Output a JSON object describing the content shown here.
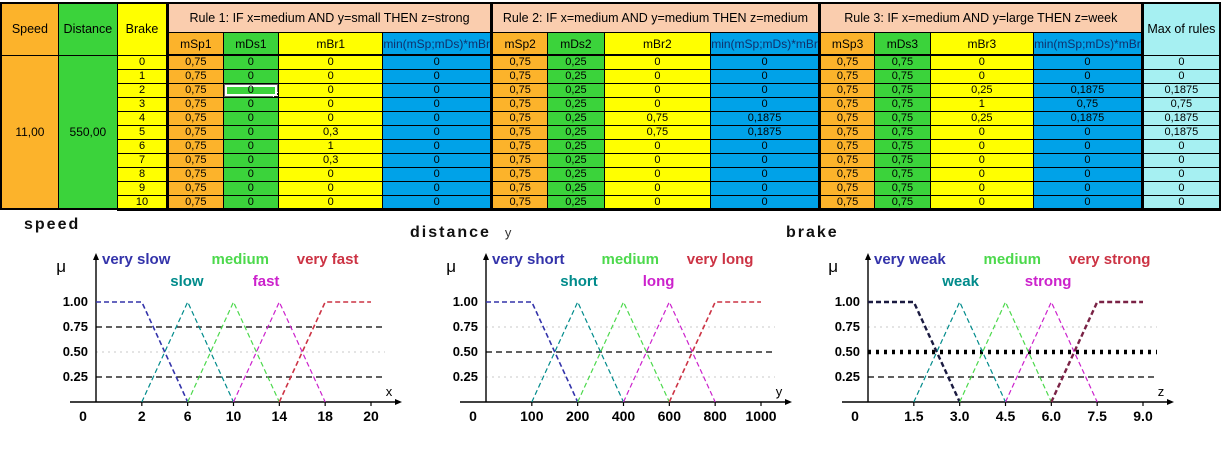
{
  "table": {
    "headers": {
      "speed": "Speed",
      "distance": "Distance",
      "brake": "Brake",
      "max": "Max of rules"
    },
    "rules": [
      {
        "title": "Rule 1: IF x=medium AND y=small THEN z=strong",
        "sub": [
          "mSp1",
          "mDs1",
          "mBr1",
          "min(mSp;mDs)*mBr"
        ]
      },
      {
        "title": "Rule 2: IF x=medium AND y=medium THEN z=medium",
        "sub": [
          "mSp2",
          "mDs2",
          "mBr2",
          "min(mSp;mDs)*mBr"
        ]
      },
      {
        "title": "Rule 3: IF x=medium AND y=large THEN z=week",
        "sub": [
          "mSp3",
          "mDs3",
          "mBr3",
          "min(mSp;mDs)*mBr"
        ]
      }
    ],
    "speed_value": "11,00",
    "distance_value": "550,00",
    "rows": [
      {
        "brake": "0",
        "r1": [
          "0,75",
          "0",
          "0",
          "0"
        ],
        "r2": [
          "0,75",
          "0,25",
          "0",
          "0"
        ],
        "r3": [
          "0,75",
          "0,75",
          "0",
          "0"
        ],
        "max": "0"
      },
      {
        "brake": "1",
        "r1": [
          "0,75",
          "0",
          "0",
          "0"
        ],
        "r2": [
          "0,75",
          "0,25",
          "0",
          "0"
        ],
        "r3": [
          "0,75",
          "0,75",
          "0",
          "0"
        ],
        "max": "0"
      },
      {
        "brake": "2",
        "r1": [
          "0,75",
          "0",
          "0",
          "0"
        ],
        "r2": [
          "0,75",
          "0,25",
          "0",
          "0"
        ],
        "r3": [
          "0,75",
          "0,75",
          "0,25",
          "0,1875"
        ],
        "max": "0,1875"
      },
      {
        "brake": "3",
        "r1": [
          "0,75",
          "0",
          "0",
          "0"
        ],
        "r2": [
          "0,75",
          "0,25",
          "0",
          "0"
        ],
        "r3": [
          "0,75",
          "0,75",
          "1",
          "0,75"
        ],
        "max": "0,75"
      },
      {
        "brake": "4",
        "r1": [
          "0,75",
          "0",
          "0",
          "0"
        ],
        "r2": [
          "0,75",
          "0,25",
          "0,75",
          "0,1875"
        ],
        "r3": [
          "0,75",
          "0,75",
          "0,25",
          "0,1875"
        ],
        "max": "0,1875"
      },
      {
        "brake": "5",
        "r1": [
          "0,75",
          "0",
          "0,3",
          "0"
        ],
        "r2": [
          "0,75",
          "0,25",
          "0,75",
          "0,1875"
        ],
        "r3": [
          "0,75",
          "0,75",
          "0",
          "0"
        ],
        "max": "0,1875"
      },
      {
        "brake": "6",
        "r1": [
          "0,75",
          "0",
          "1",
          "0"
        ],
        "r2": [
          "0,75",
          "0,25",
          "0",
          "0"
        ],
        "r3": [
          "0,75",
          "0,75",
          "0",
          "0"
        ],
        "max": "0"
      },
      {
        "brake": "7",
        "r1": [
          "0,75",
          "0",
          "0,3",
          "0"
        ],
        "r2": [
          "0,75",
          "0,25",
          "0",
          "0"
        ],
        "r3": [
          "0,75",
          "0,75",
          "0",
          "0"
        ],
        "max": "0"
      },
      {
        "brake": "8",
        "r1": [
          "0,75",
          "0",
          "0",
          "0"
        ],
        "r2": [
          "0,75",
          "0,25",
          "0",
          "0"
        ],
        "r3": [
          "0,75",
          "0,75",
          "0",
          "0"
        ],
        "max": "0"
      },
      {
        "brake": "9",
        "r1": [
          "0,75",
          "0",
          "0",
          "0"
        ],
        "r2": [
          "0,75",
          "0,25",
          "0",
          "0"
        ],
        "r3": [
          "0,75",
          "0,75",
          "0",
          "0"
        ],
        "max": "0"
      },
      {
        "brake": "10",
        "r1": [
          "0,75",
          "0",
          "0",
          "0"
        ],
        "r2": [
          "0,75",
          "0,25",
          "0",
          "0"
        ],
        "r3": [
          "0,75",
          "0,75",
          "0",
          "0"
        ],
        "max": "0"
      }
    ],
    "selected_cell": {
      "row_index": 2,
      "rule_index": 0,
      "col_index": 1
    }
  },
  "colors": {
    "orange": "#FCB32B",
    "green": "#3BD33B",
    "yellow": "#FFFF00",
    "peach": "#FACDAE",
    "blue": "#00A2E8",
    "pale_cyan": "#A6F0F2"
  },
  "chart_data": [
    {
      "type": "line",
      "title": "speed",
      "title_suffix": "",
      "mu_label": "μ",
      "axis_letter": "x",
      "ylim": [
        0,
        1
      ],
      "ticks": [
        0,
        2,
        6,
        10,
        14,
        18,
        20
      ],
      "xtick_labels": [
        "0",
        "2",
        "6",
        "10",
        "14",
        "18",
        "20"
      ],
      "ytick_labels": [
        "1.00",
        "0.75",
        "0.50",
        "0.25"
      ],
      "guides": [
        {
          "y": 0.75,
          "style": "dash"
        },
        {
          "y": 0.5,
          "style": "dot-gray"
        },
        {
          "y": 0.25,
          "style": "dash"
        }
      ],
      "series": [
        {
          "name": "very slow",
          "color": "#3333AA",
          "label_color": "#3333AA",
          "width": 1.6,
          "points": [
            [
              0,
              1
            ],
            [
              2,
              1
            ],
            [
              6,
              0
            ]
          ]
        },
        {
          "name": "slow",
          "color": "#008B8B",
          "label_color": "#008B8B",
          "width": 1.2,
          "points": [
            [
              2,
              0
            ],
            [
              6,
              1
            ],
            [
              10,
              0
            ]
          ]
        },
        {
          "name": "medium",
          "color": "#4CD94C",
          "label_color": "#4CD94C",
          "width": 1.2,
          "points": [
            [
              6,
              0
            ],
            [
              10,
              1
            ],
            [
              14,
              0
            ]
          ]
        },
        {
          "name": "fast",
          "color": "#CC22CC",
          "label_color": "#CC22CC",
          "width": 1.2,
          "points": [
            [
              10,
              0
            ],
            [
              14,
              1
            ],
            [
              18,
              0
            ]
          ]
        },
        {
          "name": "very fast",
          "color": "#CC3344",
          "label_color": "#CC3344",
          "width": 1.6,
          "points": [
            [
              14,
              0
            ],
            [
              18,
              1
            ],
            [
              20,
              1
            ]
          ]
        }
      ]
    },
    {
      "type": "line",
      "title": "distance",
      "title_suffix": "y",
      "mu_label": "μ",
      "axis_letter": "y",
      "ylim": [
        0,
        1
      ],
      "ticks": [
        0,
        100,
        200,
        400,
        600,
        800,
        1000
      ],
      "xtick_labels": [
        "0",
        "100",
        "200",
        "400",
        "600",
        "800",
        "1000"
      ],
      "ytick_labels": [
        "1.00",
        "0.75",
        "0.50",
        "0.25"
      ],
      "guides": [
        {
          "y": 0.75,
          "style": "dot-gray"
        },
        {
          "y": 0.5,
          "style": "dash"
        },
        {
          "y": 0.25,
          "style": "dot-gray"
        }
      ],
      "series": [
        {
          "name": "very short",
          "color": "#3333AA",
          "label_color": "#3333AA",
          "width": 1.6,
          "points": [
            [
              0,
              1
            ],
            [
              100,
              1
            ],
            [
              200,
              0
            ]
          ]
        },
        {
          "name": "short",
          "color": "#008B8B",
          "label_color": "#008B8B",
          "width": 1.2,
          "points": [
            [
              100,
              0
            ],
            [
              200,
              1
            ],
            [
              400,
              0
            ]
          ]
        },
        {
          "name": "medium",
          "color": "#4CD94C",
          "label_color": "#4CD94C",
          "width": 1.2,
          "points": [
            [
              200,
              0
            ],
            [
              400,
              1
            ],
            [
              600,
              0
            ]
          ]
        },
        {
          "name": "long",
          "color": "#CC22CC",
          "label_color": "#CC22CC",
          "width": 1.2,
          "points": [
            [
              400,
              0
            ],
            [
              600,
              1
            ],
            [
              800,
              0
            ]
          ]
        },
        {
          "name": "very long",
          "color": "#CC3344",
          "label_color": "#CC3344",
          "width": 1.6,
          "points": [
            [
              600,
              0
            ],
            [
              800,
              1
            ],
            [
              1000,
              1
            ]
          ]
        }
      ]
    },
    {
      "type": "line",
      "title": "brake",
      "title_suffix": "",
      "mu_label": "μ",
      "axis_letter": "z",
      "ylim": [
        0,
        1
      ],
      "ticks": [
        0,
        1.5,
        3.0,
        4.5,
        6.0,
        7.5,
        9.0
      ],
      "xtick_labels": [
        "0",
        "1.5",
        "3.0",
        "4.5",
        "6.0",
        "7.5",
        "9.0"
      ],
      "ytick_labels": [
        "1.00",
        "0.75",
        "0.50",
        "0.25"
      ],
      "guides": [
        {
          "y": 0.75,
          "style": "dot-gray"
        },
        {
          "y": 0.5,
          "style": "dot-bold"
        },
        {
          "y": 0.25,
          "style": "dash"
        }
      ],
      "series": [
        {
          "name": "very weak",
          "color": "#1A1A40",
          "label_color": "#3333AA",
          "width": 2.4,
          "points": [
            [
              0,
              1
            ],
            [
              1.5,
              1
            ],
            [
              3,
              0
            ]
          ]
        },
        {
          "name": "weak",
          "color": "#008B8B",
          "label_color": "#008B8B",
          "width": 1.2,
          "points": [
            [
              1.5,
              0
            ],
            [
              3,
              1
            ],
            [
              4.5,
              0
            ]
          ]
        },
        {
          "name": "medium",
          "color": "#4CD94C",
          "label_color": "#4CD94C",
          "width": 1.2,
          "points": [
            [
              3,
              0
            ],
            [
              4.5,
              1
            ],
            [
              6,
              0
            ]
          ]
        },
        {
          "name": "strong",
          "color": "#CC22CC",
          "label_color": "#CC22CC",
          "width": 1.2,
          "points": [
            [
              4.5,
              0
            ],
            [
              6,
              1
            ],
            [
              7.5,
              0
            ]
          ]
        },
        {
          "name": "very strong",
          "color": "#7A2245",
          "label_color": "#CC3344",
          "width": 2.4,
          "points": [
            [
              6,
              0
            ],
            [
              7.5,
              1
            ],
            [
              9,
              1
            ]
          ]
        }
      ]
    }
  ]
}
